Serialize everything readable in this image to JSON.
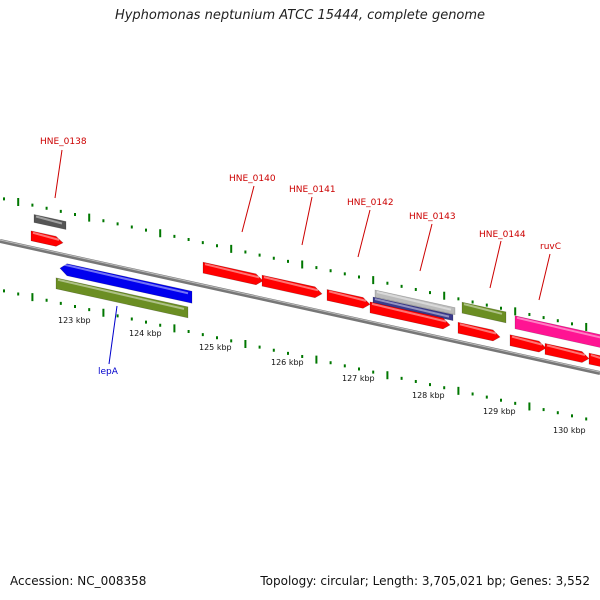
{
  "title": "Hyphomonas neptunium ATCC 15444, complete genome",
  "footer": {
    "accession": "Accession: NC_008358",
    "summary": "Topology: circular; Length: 3,705,021 bp; Genes: 3,552"
  },
  "colors": {
    "red": "#ff0000",
    "blue": "#0000ee",
    "olive": "#6b8e23",
    "magenta": "#ff1493",
    "grey": "#555555",
    "lightgrey": "#bbbbbb",
    "navy": "#3a3a8c",
    "label_red": "#cc0000",
    "label_blue": "#0000cc",
    "tick_green": "#007700",
    "backbone": "#777777"
  },
  "scale_labels": [
    "123 kbp",
    "124 kbp",
    "125 kbp",
    "126 kbp",
    "127 kbp",
    "128 kbp",
    "129 kbp",
    "130 kbp"
  ],
  "gene_labels": [
    {
      "text": "HNE_0138",
      "color": "red"
    },
    {
      "text": "HNE_0140",
      "color": "red"
    },
    {
      "text": "HNE_0141",
      "color": "red"
    },
    {
      "text": "HNE_0142",
      "color": "red"
    },
    {
      "text": "HNE_0143",
      "color": "red"
    },
    {
      "text": "HNE_0144",
      "color": "red"
    },
    {
      "text": "ruvC",
      "color": "red"
    },
    {
      "text": "lepA",
      "color": "blue"
    }
  ]
}
